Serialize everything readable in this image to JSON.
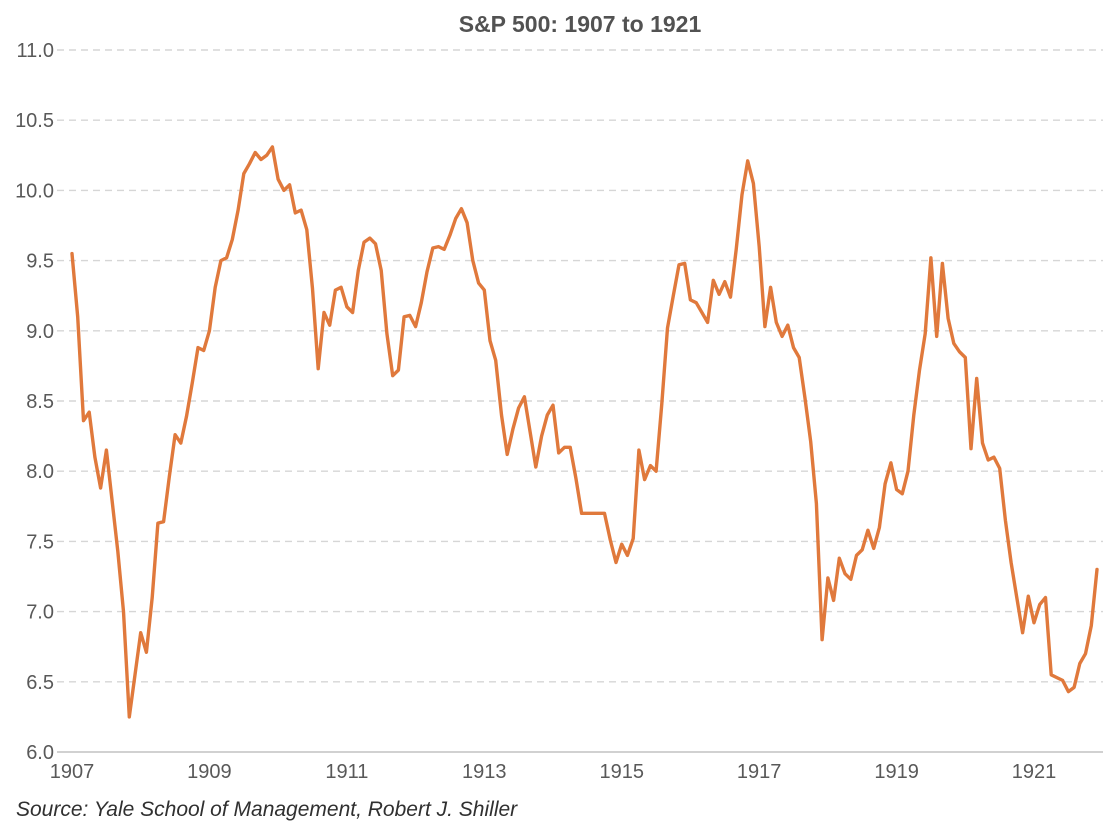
{
  "source_note": "Source:  Yale School of Management, Robert J. Shiller",
  "colors": {
    "line": "#E0793C",
    "title_text": "#525252",
    "tick_text": "#595959",
    "gridline": "#D6D6D6",
    "axis_line": "#C2C2C2",
    "source_text": "#303030",
    "background": "#FFFFFF"
  },
  "chart_data": {
    "type": "line",
    "title": "S&P 500: 1907 to 1921",
    "xlabel": "",
    "ylabel": "",
    "frequency": "monthly",
    "x_start": "1907-01",
    "x_end": "1921-12",
    "ylim": [
      6.0,
      11.0
    ],
    "y_ticks": [
      6.0,
      6.5,
      7.0,
      7.5,
      8.0,
      8.5,
      9.0,
      9.5,
      10.0,
      10.5,
      11.0
    ],
    "y_tick_labels": [
      "6.0",
      "6.5",
      "7.0",
      "7.5",
      "8.0",
      "8.5",
      "9.0",
      "9.5",
      "10.0",
      "10.5",
      "11.0"
    ],
    "x_ticks": [
      1907,
      1909,
      1911,
      1913,
      1915,
      1917,
      1919,
      1921
    ],
    "grid": "horizontal-dashed",
    "legend": "none",
    "series": [
      {
        "name": "S&P 500",
        "values": [
          9.55,
          9.1,
          8.36,
          8.42,
          8.1,
          7.88,
          8.15,
          7.79,
          7.43,
          7.0,
          6.25,
          6.55,
          6.85,
          6.71,
          7.1,
          7.63,
          7.64,
          7.96,
          8.26,
          8.2,
          8.39,
          8.63,
          8.88,
          8.86,
          9.0,
          9.31,
          9.5,
          9.52,
          9.65,
          9.86,
          10.12,
          10.19,
          10.27,
          10.22,
          10.25,
          10.31,
          10.08,
          10.0,
          10.04,
          9.84,
          9.86,
          9.72,
          9.3,
          8.73,
          9.13,
          9.04,
          9.29,
          9.31,
          9.17,
          9.13,
          9.43,
          9.63,
          9.66,
          9.62,
          9.43,
          8.98,
          8.68,
          8.72,
          9.1,
          9.11,
          9.03,
          9.2,
          9.42,
          9.59,
          9.6,
          9.58,
          9.68,
          9.8,
          9.87,
          9.77,
          9.5,
          9.34,
          9.29,
          8.93,
          8.79,
          8.4,
          8.12,
          8.3,
          8.45,
          8.53,
          8.28,
          8.03,
          8.25,
          8.4,
          8.47,
          8.13,
          8.17,
          8.17,
          7.95,
          7.7,
          7.7,
          7.7,
          7.7,
          7.7,
          7.51,
          7.35,
          7.48,
          7.4,
          7.52,
          8.15,
          7.94,
          8.04,
          8.0,
          8.48,
          9.02,
          9.25,
          9.47,
          9.48,
          9.22,
          9.2,
          9.13,
          9.06,
          9.36,
          9.26,
          9.35,
          9.24,
          9.58,
          9.97,
          10.21,
          10.05,
          9.6,
          9.03,
          9.31,
          9.06,
          8.96,
          9.04,
          8.88,
          8.81,
          8.52,
          8.21,
          7.77,
          6.8,
          7.24,
          7.08,
          7.38,
          7.27,
          7.23,
          7.4,
          7.44,
          7.58,
          7.45,
          7.6,
          7.91,
          8.06,
          7.87,
          7.84,
          8.0,
          8.4,
          8.72,
          8.98,
          9.52,
          8.96,
          9.48,
          9.09,
          8.91,
          8.85,
          8.81,
          8.16,
          8.66,
          8.2,
          8.08,
          8.1,
          8.02,
          7.65,
          7.35,
          7.1,
          6.85,
          7.11,
          6.92,
          7.05,
          7.1,
          6.55,
          6.53,
          6.51,
          6.43,
          6.46,
          6.63,
          6.7,
          6.9,
          7.3
        ]
      }
    ]
  }
}
